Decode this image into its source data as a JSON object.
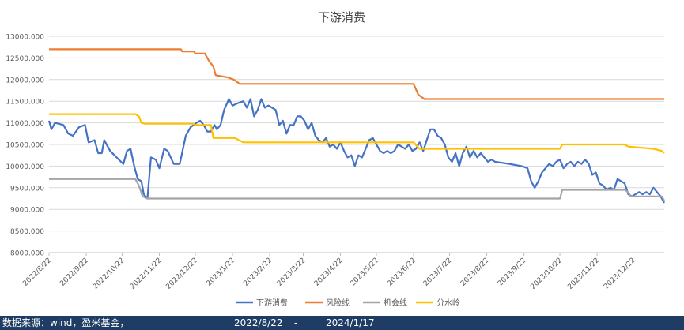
{
  "chart_data": {
    "type": "line",
    "title": "下游消费",
    "xlabel": "",
    "ylabel": "",
    "ylim": [
      8000,
      13000
    ],
    "y_ticks": [
      "13000.000",
      "12500.000",
      "12000.000",
      "11500.000",
      "11000.000",
      "10500.000",
      "10000.000",
      "9500.000",
      "9000.000",
      "8500.000",
      "8000.000"
    ],
    "x_range": [
      "2022-08-22",
      "2024-01-17"
    ],
    "x_ticks": [
      "2022/8/22",
      "2022/9/22",
      "2022/10/22",
      "2022/11/22",
      "2022/12/22",
      "2023/1/22",
      "2023/2/22",
      "2023/3/22",
      "2023/4/22",
      "2023/5/22",
      "2023/6/22",
      "2023/7/22",
      "2023/8/22",
      "2023/9/22",
      "2023/10/22",
      "2023/11/22",
      "2023/12/22"
    ],
    "grid": "horizontal",
    "legend_position": "bottom",
    "series": [
      {
        "name": "下游消费",
        "color": "#4472c4",
        "points": [
          [
            "2022-08-22",
            11050
          ],
          [
            "2022-08-24",
            10850
          ],
          [
            "2022-08-27",
            11000
          ],
          [
            "2022-09-03",
            10950
          ],
          [
            "2022-09-07",
            10750
          ],
          [
            "2022-09-11",
            10700
          ],
          [
            "2022-09-16",
            10900
          ],
          [
            "2022-09-21",
            10950
          ],
          [
            "2022-09-24",
            10550
          ],
          [
            "2022-09-29",
            10600
          ],
          [
            "2022-10-02",
            10300
          ],
          [
            "2022-10-05",
            10300
          ],
          [
            "2022-10-07",
            10600
          ],
          [
            "2022-10-12",
            10350
          ],
          [
            "2022-10-21",
            10100
          ],
          [
            "2022-10-23",
            10050
          ],
          [
            "2022-10-26",
            10350
          ],
          [
            "2022-10-29",
            10400
          ],
          [
            "2022-11-01",
            10000
          ],
          [
            "2022-11-04",
            9700
          ],
          [
            "2022-11-07",
            9650
          ],
          [
            "2022-11-09",
            9350
          ],
          [
            "2022-11-12",
            9250
          ],
          [
            "2022-11-15",
            10200
          ],
          [
            "2022-11-19",
            10150
          ],
          [
            "2022-11-22",
            9950
          ],
          [
            "2022-11-26",
            10400
          ],
          [
            "2022-11-29",
            10350
          ],
          [
            "2022-12-04",
            10050
          ],
          [
            "2022-12-09",
            10050
          ],
          [
            "2022-12-14",
            10700
          ],
          [
            "2022-12-18",
            10900
          ],
          [
            "2022-12-23",
            11000
          ],
          [
            "2022-12-26",
            11050
          ],
          [
            "2022-12-29",
            10950
          ],
          [
            "2023-01-01",
            10800
          ],
          [
            "2023-01-04",
            10800
          ],
          [
            "2023-01-07",
            10950
          ],
          [
            "2023-01-09",
            10850
          ],
          [
            "2023-01-12",
            10950
          ],
          [
            "2023-01-15",
            11300
          ],
          [
            "2023-01-19",
            11550
          ],
          [
            "2023-01-22",
            11400
          ],
          [
            "2023-01-26",
            11450
          ],
          [
            "2023-01-31",
            11500
          ],
          [
            "2023-02-03",
            11350
          ],
          [
            "2023-02-06",
            11550
          ],
          [
            "2023-02-09",
            11150
          ],
          [
            "2023-02-12",
            11300
          ],
          [
            "2023-02-15",
            11550
          ],
          [
            "2023-02-18",
            11350
          ],
          [
            "2023-02-21",
            11400
          ],
          [
            "2023-02-24",
            11350
          ],
          [
            "2023-02-27",
            11300
          ],
          [
            "2023-03-02",
            10950
          ],
          [
            "2023-03-05",
            11050
          ],
          [
            "2023-03-08",
            10750
          ],
          [
            "2023-03-11",
            10950
          ],
          [
            "2023-03-14",
            10950
          ],
          [
            "2023-03-17",
            11150
          ],
          [
            "2023-03-20",
            11150
          ],
          [
            "2023-03-23",
            11050
          ],
          [
            "2023-03-26",
            10850
          ],
          [
            "2023-03-29",
            11000
          ],
          [
            "2023-04-01",
            10700
          ],
          [
            "2023-04-04",
            10600
          ],
          [
            "2023-04-07",
            10550
          ],
          [
            "2023-04-10",
            10650
          ],
          [
            "2023-04-13",
            10450
          ],
          [
            "2023-04-16",
            10500
          ],
          [
            "2023-04-19",
            10400
          ],
          [
            "2023-04-22",
            10550
          ],
          [
            "2023-04-25",
            10350
          ],
          [
            "2023-04-28",
            10200
          ],
          [
            "2023-05-01",
            10250
          ],
          [
            "2023-05-04",
            10000
          ],
          [
            "2023-05-07",
            10250
          ],
          [
            "2023-05-10",
            10200
          ],
          [
            "2023-05-13",
            10400
          ],
          [
            "2023-05-16",
            10600
          ],
          [
            "2023-05-19",
            10650
          ],
          [
            "2023-05-22",
            10500
          ],
          [
            "2023-05-25",
            10350
          ],
          [
            "2023-05-28",
            10300
          ],
          [
            "2023-05-31",
            10350
          ],
          [
            "2023-06-03",
            10300
          ],
          [
            "2023-06-06",
            10350
          ],
          [
            "2023-06-09",
            10500
          ],
          [
            "2023-06-12",
            10450
          ],
          [
            "2023-06-15",
            10400
          ],
          [
            "2023-06-18",
            10500
          ],
          [
            "2023-06-21",
            10350
          ],
          [
            "2023-06-24",
            10400
          ],
          [
            "2023-06-27",
            10550
          ],
          [
            "2023-06-30",
            10350
          ],
          [
            "2023-07-03",
            10600
          ],
          [
            "2023-07-06",
            10850
          ],
          [
            "2023-07-09",
            10850
          ],
          [
            "2023-07-12",
            10700
          ],
          [
            "2023-07-15",
            10650
          ],
          [
            "2023-07-18",
            10500
          ],
          [
            "2023-07-21",
            10200
          ],
          [
            "2023-07-24",
            10100
          ],
          [
            "2023-07-27",
            10300
          ],
          [
            "2023-07-30",
            10000
          ],
          [
            "2023-08-02",
            10300
          ],
          [
            "2023-08-05",
            10450
          ],
          [
            "2023-08-08",
            10200
          ],
          [
            "2023-08-11",
            10350
          ],
          [
            "2023-08-14",
            10200
          ],
          [
            "2023-08-17",
            10300
          ],
          [
            "2023-08-20",
            10200
          ],
          [
            "2023-08-23",
            10100
          ],
          [
            "2023-08-26",
            10150
          ],
          [
            "2023-08-29",
            10100
          ],
          [
            "2023-09-10",
            10050
          ],
          [
            "2023-09-20",
            10000
          ],
          [
            "2023-09-25",
            9950
          ],
          [
            "2023-09-28",
            9650
          ],
          [
            "2023-10-01",
            9500
          ],
          [
            "2023-10-04",
            9650
          ],
          [
            "2023-10-07",
            9850
          ],
          [
            "2023-10-10",
            9950
          ],
          [
            "2023-10-13",
            10050
          ],
          [
            "2023-10-16",
            10000
          ],
          [
            "2023-10-19",
            10100
          ],
          [
            "2023-10-22",
            10150
          ],
          [
            "2023-10-25",
            9950
          ],
          [
            "2023-10-28",
            10050
          ],
          [
            "2023-10-31",
            10100
          ],
          [
            "2023-11-03",
            10000
          ],
          [
            "2023-11-06",
            10100
          ],
          [
            "2023-11-09",
            10050
          ],
          [
            "2023-11-12",
            10150
          ],
          [
            "2023-11-15",
            10050
          ],
          [
            "2023-11-18",
            9800
          ],
          [
            "2023-11-21",
            9850
          ],
          [
            "2023-11-24",
            9600
          ],
          [
            "2023-11-27",
            9550
          ],
          [
            "2023-11-30",
            9450
          ],
          [
            "2023-12-03",
            9500
          ],
          [
            "2023-12-06",
            9450
          ],
          [
            "2023-12-09",
            9700
          ],
          [
            "2023-12-12",
            9650
          ],
          [
            "2023-12-15",
            9600
          ],
          [
            "2023-12-18",
            9350
          ],
          [
            "2023-12-21",
            9300
          ],
          [
            "2023-12-24",
            9350
          ],
          [
            "2023-12-27",
            9400
          ],
          [
            "2023-12-30",
            9350
          ],
          [
            "2024-01-02",
            9400
          ],
          [
            "2024-01-05",
            9350
          ],
          [
            "2024-01-08",
            9500
          ],
          [
            "2024-01-11",
            9400
          ],
          [
            "2024-01-14",
            9300
          ],
          [
            "2024-01-17",
            9150
          ]
        ]
      },
      {
        "name": "风险线",
        "color": "#ed7d31",
        "points": [
          [
            "2022-08-22",
            12700
          ],
          [
            "2022-12-10",
            12700
          ],
          [
            "2022-12-11",
            12650
          ],
          [
            "2022-12-21",
            12650
          ],
          [
            "2022-12-22",
            12600
          ],
          [
            "2022-12-30",
            12600
          ],
          [
            "2023-01-02",
            12450
          ],
          [
            "2023-01-06",
            12300
          ],
          [
            "2023-01-08",
            12100
          ],
          [
            "2023-01-18",
            12050
          ],
          [
            "2023-01-23",
            12000
          ],
          [
            "2023-01-28",
            11900
          ],
          [
            "2023-06-22",
            11900
          ],
          [
            "2023-06-26",
            11650
          ],
          [
            "2023-07-01",
            11550
          ],
          [
            "2024-01-17",
            11550
          ]
        ]
      },
      {
        "name": "机会线",
        "color": "#a5a5a5",
        "points": [
          [
            "2022-08-22",
            9700
          ],
          [
            "2022-11-02",
            9700
          ],
          [
            "2022-11-05",
            9550
          ],
          [
            "2022-11-08",
            9300
          ],
          [
            "2022-11-12",
            9250
          ],
          [
            "2023-10-22",
            9250
          ],
          [
            "2023-10-24",
            9450
          ],
          [
            "2023-12-15",
            9450
          ],
          [
            "2023-12-18",
            9400
          ],
          [
            "2023-12-20",
            9300
          ],
          [
            "2024-01-15",
            9300
          ],
          [
            "2024-01-17",
            9200
          ]
        ]
      },
      {
        "name": "分水岭",
        "color": "#ffc000",
        "points": [
          [
            "2022-08-22",
            11200
          ],
          [
            "2022-11-02",
            11200
          ],
          [
            "2022-11-05",
            11150
          ],
          [
            "2022-11-07",
            11000
          ],
          [
            "2022-11-10",
            10980
          ],
          [
            "2022-12-20",
            10980
          ],
          [
            "2022-12-22",
            10950
          ],
          [
            "2023-01-04",
            10950
          ],
          [
            "2023-01-06",
            10650
          ],
          [
            "2023-01-24",
            10650
          ],
          [
            "2023-01-31",
            10550
          ],
          [
            "2023-06-22",
            10550
          ],
          [
            "2023-06-27",
            10400
          ],
          [
            "2023-10-22",
            10400
          ],
          [
            "2023-10-24",
            10500
          ],
          [
            "2023-12-15",
            10500
          ],
          [
            "2023-12-18",
            10450
          ],
          [
            "2024-01-08",
            10400
          ],
          [
            "2024-01-15",
            10350
          ],
          [
            "2024-01-17",
            10300
          ]
        ]
      }
    ]
  },
  "footer": {
    "source": "数据来源：wind，盈米基金，",
    "date_start": "2022/8/22",
    "date_sep": "-",
    "date_end": "2024/1/17"
  }
}
